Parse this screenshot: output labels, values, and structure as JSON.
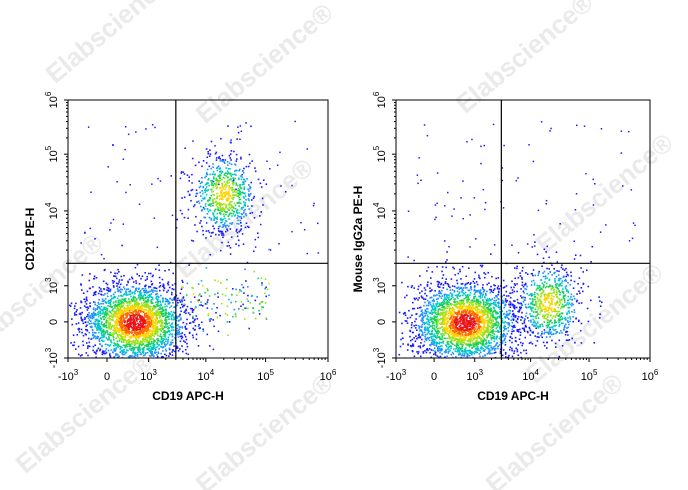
{
  "watermark": "Elabscience®",
  "chart_data": [
    {
      "type": "scatter",
      "style": "pseudocolor density dot plot (blue→green→yellow→red)",
      "xlabel": "CD19 APC-H",
      "ylabel": "CD21 PE-H",
      "x_scale": "biexponential",
      "y_scale": "biexponential",
      "xlim": [
        -1000,
        1000000
      ],
      "ylim": [
        -1000,
        1000000
      ],
      "x_ticks": [
        {
          "value": -1000,
          "base": "-10",
          "exp": "3"
        },
        {
          "value": 0,
          "base": "0",
          "exp": ""
        },
        {
          "value": 1000,
          "base": "10",
          "exp": "3"
        },
        {
          "value": 10000,
          "base": "10",
          "exp": "4"
        },
        {
          "value": 100000,
          "base": "10",
          "exp": "5"
        },
        {
          "value": 1000000,
          "base": "10",
          "exp": "6"
        }
      ],
      "y_ticks": [
        {
          "value": -1000,
          "base": "-10",
          "exp": "3"
        },
        {
          "value": 0,
          "base": "0",
          "exp": ""
        },
        {
          "value": 1000,
          "base": "10",
          "exp": "3"
        },
        {
          "value": 10000,
          "base": "10",
          "exp": "4"
        },
        {
          "value": 100000,
          "base": "10",
          "exp": "5"
        },
        {
          "value": 1000000,
          "base": "10",
          "exp": "6"
        }
      ],
      "quadrant_gate": {
        "x": 3000,
        "y": 2000
      },
      "populations": [
        {
          "name": "CD19- CD21-",
          "center": [
            200,
            0
          ],
          "spread": "large",
          "density": "high"
        },
        {
          "name": "CD19+ CD21+",
          "center": [
            20000,
            20000
          ],
          "spread": "medium",
          "density": "medium"
        },
        {
          "name": "CD19+ CD21- scatter",
          "center": [
            20000,
            200
          ],
          "spread": "wide",
          "density": "low"
        }
      ]
    },
    {
      "type": "scatter",
      "style": "pseudocolor density dot plot (blue→green→yellow→red)",
      "xlabel": "CD19 APC-H",
      "ylabel": "Mouse IgG2a PE-H",
      "x_scale": "biexponential",
      "y_scale": "biexponential",
      "xlim": [
        -1000,
        1000000
      ],
      "ylim": [
        -1000,
        1000000
      ],
      "x_ticks": [
        {
          "value": -1000,
          "base": "-10",
          "exp": "3"
        },
        {
          "value": 0,
          "base": "0",
          "exp": ""
        },
        {
          "value": 1000,
          "base": "10",
          "exp": "3"
        },
        {
          "value": 10000,
          "base": "10",
          "exp": "4"
        },
        {
          "value": 100000,
          "base": "10",
          "exp": "5"
        },
        {
          "value": 1000000,
          "base": "10",
          "exp": "6"
        }
      ],
      "y_ticks": [
        {
          "value": -1000,
          "base": "-10",
          "exp": "3"
        },
        {
          "value": 0,
          "base": "0",
          "exp": ""
        },
        {
          "value": 1000,
          "base": "10",
          "exp": "3"
        },
        {
          "value": 10000,
          "base": "10",
          "exp": "4"
        },
        {
          "value": 100000,
          "base": "10",
          "exp": "5"
        },
        {
          "value": 1000000,
          "base": "10",
          "exp": "6"
        }
      ],
      "quadrant_gate": {
        "x": 3000,
        "y": 2000
      },
      "populations": [
        {
          "name": "CD19- IgG2a-",
          "center": [
            300,
            0
          ],
          "spread": "large",
          "density": "high"
        },
        {
          "name": "CD19+ IgG2a-",
          "center": [
            20000,
            100
          ],
          "spread": "medium",
          "density": "medium"
        }
      ]
    }
  ]
}
